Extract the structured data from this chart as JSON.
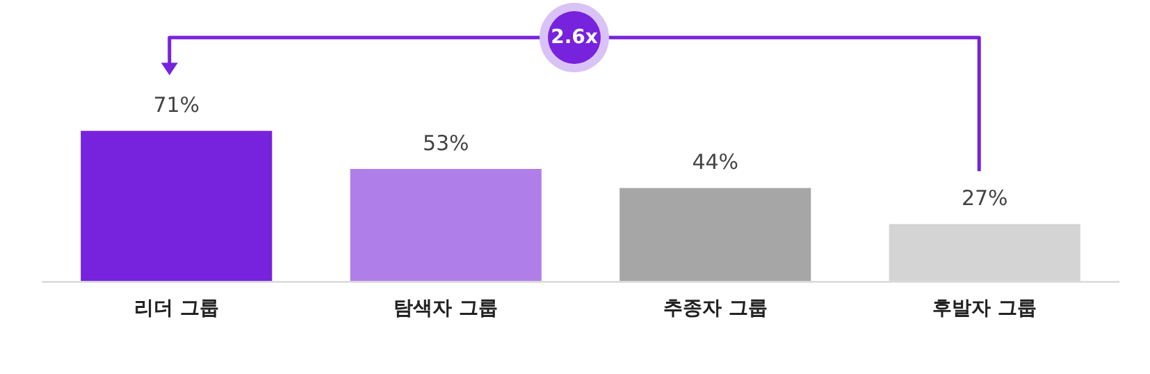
{
  "chart_data": {
    "type": "bar",
    "categories": [
      "리더 그룹",
      "탐색자 그룹",
      "추종자 그룹",
      "후발자 그룹"
    ],
    "values": [
      71,
      53,
      44,
      27
    ],
    "colors": [
      "#7722dd",
      "#b07ee8",
      "#a6a6a6",
      "#d4d4d4"
    ],
    "value_labels": [
      "71%",
      "53%",
      "44%",
      "27%"
    ],
    "annotations": [
      "2.6x"
    ],
    "grid": false,
    "legend": false
  }
}
